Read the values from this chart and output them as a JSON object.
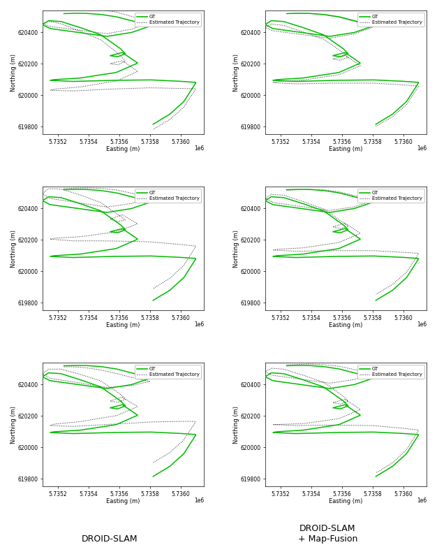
{
  "title_left": "DROID-SLAM",
  "title_right": "DROID-SLAM\n+ Map-Fusion",
  "xlabel": "Easting (m)",
  "ylabel": "Northing (m)",
  "xlim": [
    573510000,
    573615000
  ],
  "ylim": [
    619750,
    620540
  ],
  "xticks": [
    573520000,
    573540000,
    573560000,
    573580000,
    573600000
  ],
  "xtick_labels": [
    "5.7352",
    "5.7354",
    "5.7356",
    "5.7358",
    "5.7360"
  ],
  "yticks": [
    619800,
    620000,
    620200,
    620400
  ],
  "ytick_labels": [
    "619800",
    "620000",
    "620200",
    "620400"
  ],
  "gt_color": "#00bb00",
  "est_color": "#222222",
  "background": "#ffffff",
  "legend_gt": "GT",
  "legend_est": "Estimated Trajectory"
}
